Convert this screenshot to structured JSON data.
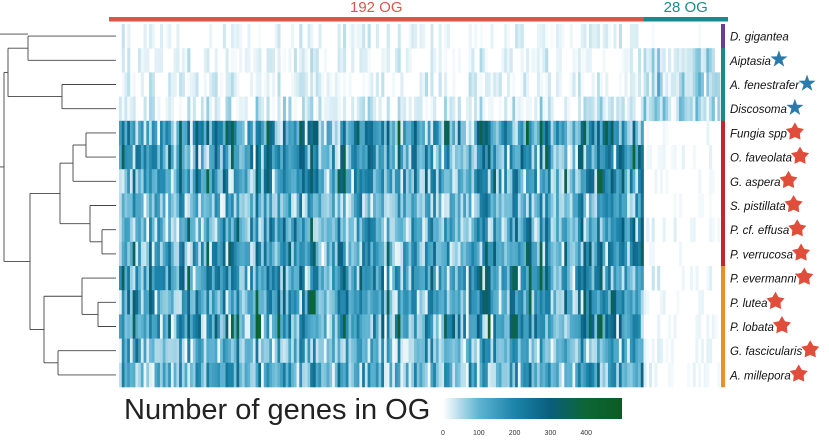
{
  "chart_data": {
    "type": "heatmap",
    "title": "",
    "column_groups": [
      {
        "label": "192 OG",
        "count": 192,
        "color": "#d9574a"
      },
      {
        "label": "28 OG",
        "count": 28,
        "color": "#1a8a8c"
      }
    ],
    "rows": [
      {
        "name": "D. gigantea",
        "marker": "none",
        "clade": "purple"
      },
      {
        "name": "Aiptasia",
        "marker": "star-blue",
        "clade": "teal"
      },
      {
        "name": "A. fenestrafer",
        "marker": "star-blue",
        "clade": "teal"
      },
      {
        "name": "Discosoma",
        "marker": "star-blue",
        "clade": "teal"
      },
      {
        "name": "Fungia spp",
        "marker": "star-red",
        "clade": "red"
      },
      {
        "name": "O. faveolata",
        "marker": "star-red",
        "clade": "red"
      },
      {
        "name": "G. aspera",
        "marker": "star-red",
        "clade": "red"
      },
      {
        "name": "S. pistillata",
        "marker": "star-red",
        "clade": "red"
      },
      {
        "name": "P. cf. effusa",
        "marker": "star-red",
        "clade": "red"
      },
      {
        "name": "P. verrucosa",
        "marker": "star-red",
        "clade": "red"
      },
      {
        "name": "P. evermanni",
        "marker": "star-red",
        "clade": "orange"
      },
      {
        "name": "P. lutea",
        "marker": "star-red",
        "clade": "orange"
      },
      {
        "name": "P. lobata",
        "marker": "star-red",
        "clade": "orange"
      },
      {
        "name": "G. fascicularis",
        "marker": "star-red",
        "clade": "orange"
      },
      {
        "name": "A. millepora",
        "marker": "star-red",
        "clade": "orange"
      }
    ],
    "row_mean_genes_192": [
      25,
      30,
      35,
      45,
      250,
      230,
      220,
      160,
      200,
      210,
      230,
      220,
      240,
      150,
      170
    ],
    "row_mean_genes_28": [
      5,
      60,
      80,
      90,
      10,
      15,
      15,
      10,
      20,
      10,
      20,
      15,
      15,
      20,
      20
    ],
    "colorbar": {
      "label": "Number of genes in OG",
      "min": 0,
      "max": 500,
      "ticks": [
        0,
        100,
        200,
        300,
        400
      ],
      "colors": [
        "#ffffff",
        "#5fb4d2",
        "#1c84aa",
        "#0a5e7d",
        "#0d6634",
        "#0a5c24"
      ]
    },
    "clade_colors": {
      "purple": "#6a3d9a",
      "teal": "#1a8a8c",
      "red": "#c0282c",
      "orange": "#e8902a"
    },
    "star_colors": {
      "star-blue": "#2a7bab",
      "star-red": "#e04e3b"
    }
  }
}
